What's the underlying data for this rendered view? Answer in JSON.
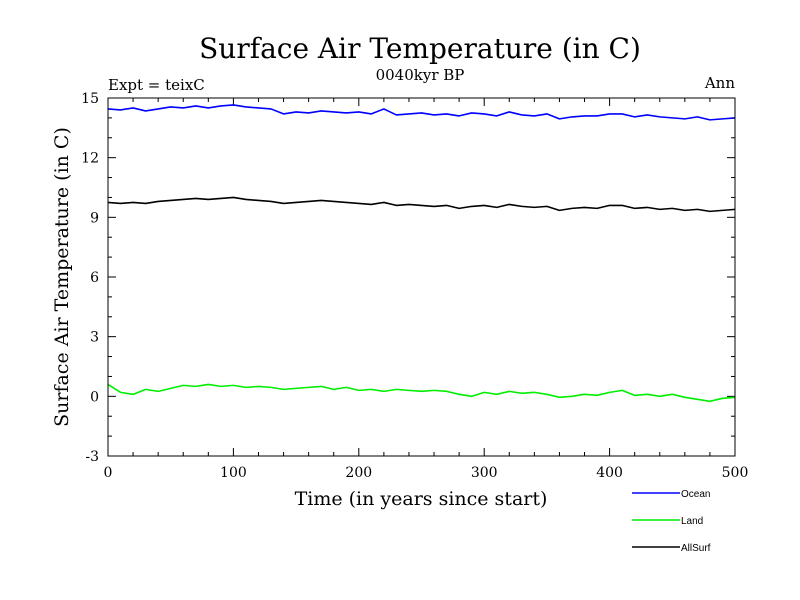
{
  "chart_data": {
    "type": "line",
    "title": "Surface Air Temperature (in C)",
    "subtitle": "0040kyr BP",
    "left_label": "Expt = teixC",
    "right_label": "Ann",
    "xlabel": "Time (in years since start)",
    "ylabel": "Surface Air Temperature (in C)",
    "xlim": [
      0,
      500
    ],
    "ylim": [
      -3,
      15
    ],
    "xticks": [
      0,
      100,
      200,
      300,
      400,
      500
    ],
    "yticks": [
      -3,
      0,
      3,
      6,
      9,
      12,
      15
    ],
    "x": [
      0,
      10,
      20,
      30,
      40,
      50,
      60,
      70,
      80,
      90,
      100,
      110,
      120,
      130,
      140,
      150,
      160,
      170,
      180,
      190,
      200,
      210,
      220,
      230,
      240,
      250,
      260,
      270,
      280,
      290,
      300,
      310,
      320,
      330,
      340,
      350,
      360,
      370,
      380,
      390,
      400,
      410,
      420,
      430,
      440,
      450,
      460,
      470,
      480,
      490,
      500
    ],
    "series": [
      {
        "name": "Ocean",
        "color": "#0000ff",
        "values": [
          14.45,
          14.4,
          14.5,
          14.35,
          14.45,
          14.55,
          14.5,
          14.6,
          14.5,
          14.6,
          14.65,
          14.55,
          14.5,
          14.45,
          14.2,
          14.3,
          14.25,
          14.35,
          14.3,
          14.25,
          14.3,
          14.2,
          14.45,
          14.15,
          14.2,
          14.25,
          14.15,
          14.2,
          14.1,
          14.25,
          14.2,
          14.1,
          14.3,
          14.15,
          14.1,
          14.2,
          13.95,
          14.05,
          14.1,
          14.1,
          14.2,
          14.2,
          14.05,
          14.15,
          14.05,
          14.0,
          13.95,
          14.05,
          13.9,
          13.95,
          14.0
        ]
      },
      {
        "name": "Land",
        "color": "#00ee00",
        "values": [
          0.6,
          0.2,
          0.1,
          0.35,
          0.25,
          0.4,
          0.55,
          0.5,
          0.6,
          0.5,
          0.55,
          0.45,
          0.5,
          0.45,
          0.35,
          0.4,
          0.45,
          0.5,
          0.35,
          0.45,
          0.3,
          0.35,
          0.25,
          0.35,
          0.3,
          0.25,
          0.3,
          0.25,
          0.1,
          0.0,
          0.2,
          0.1,
          0.25,
          0.15,
          0.2,
          0.1,
          -0.05,
          0.0,
          0.1,
          0.05,
          0.2,
          0.3,
          0.05,
          0.1,
          0.0,
          0.1,
          -0.05,
          -0.15,
          -0.25,
          -0.1,
          -0.05
        ]
      },
      {
        "name": "AllSurf",
        "color": "#000000",
        "values": [
          9.75,
          9.7,
          9.75,
          9.7,
          9.8,
          9.85,
          9.9,
          9.95,
          9.9,
          9.95,
          10.0,
          9.9,
          9.85,
          9.8,
          9.7,
          9.75,
          9.8,
          9.85,
          9.8,
          9.75,
          9.7,
          9.65,
          9.75,
          9.6,
          9.65,
          9.6,
          9.55,
          9.6,
          9.45,
          9.55,
          9.6,
          9.5,
          9.65,
          9.55,
          9.5,
          9.55,
          9.35,
          9.45,
          9.5,
          9.45,
          9.6,
          9.6,
          9.45,
          9.5,
          9.4,
          9.45,
          9.35,
          9.4,
          9.3,
          9.35,
          9.4
        ]
      }
    ],
    "legend_position": "bottom-right",
    "grid": false
  }
}
